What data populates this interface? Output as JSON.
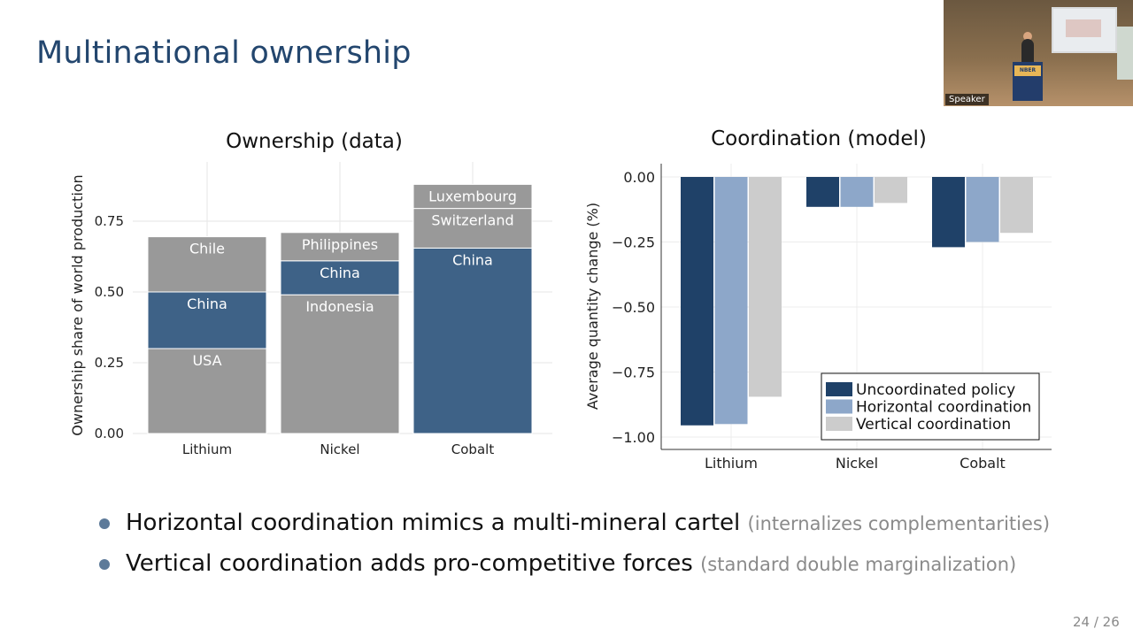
{
  "slide": {
    "title": "Multinational ownership",
    "page_number": "24 / 26",
    "speaker_label": "Speaker",
    "podium_sign": "NBER"
  },
  "bullets": [
    {
      "text": "Horizontal coordination mimics a multi-mineral cartel",
      "note": "(internalizes complementarities)"
    },
    {
      "text": "Vertical coordination adds pro-competitive forces",
      "note": "(standard double marginalization)"
    }
  ],
  "colors": {
    "title": "#23466e",
    "bar_gray": "#999999",
    "bar_blue": "#3e6287",
    "dark_blue": "#1f4168",
    "light_blue": "#8da7c9",
    "light_gray": "#cccccc",
    "bullet": "#5d7a99"
  },
  "chart_data": [
    {
      "type": "bar",
      "stacked": true,
      "title": "Ownership (data)",
      "ylabel": "Ownership share of world production",
      "xlabel": "",
      "categories": [
        "Lithium",
        "Nickel",
        "Cobalt"
      ],
      "ylim": [
        0,
        0.95
      ],
      "yticks": [
        "0.00",
        "0.25",
        "0.50",
        "0.75"
      ],
      "grid": true,
      "bars": [
        {
          "category": "Lithium",
          "segments": [
            {
              "label": "USA",
              "value": 0.3,
              "color": "gray"
            },
            {
              "label": "China",
              "value": 0.2,
              "color": "blue"
            },
            {
              "label": "Chile",
              "value": 0.195,
              "color": "gray"
            }
          ]
        },
        {
          "category": "Nickel",
          "segments": [
            {
              "label": "Indonesia",
              "value": 0.49,
              "color": "gray"
            },
            {
              "label": "China",
              "value": 0.12,
              "color": "blue"
            },
            {
              "label": "Philippines",
              "value": 0.1,
              "color": "gray"
            }
          ]
        },
        {
          "category": "Cobalt",
          "segments": [
            {
              "label": "China",
              "value": 0.655,
              "color": "blue"
            },
            {
              "label": "Switzerland",
              "value": 0.14,
              "color": "gray"
            },
            {
              "label": "Luxembourg",
              "value": 0.085,
              "color": "gray"
            }
          ]
        }
      ]
    },
    {
      "type": "bar",
      "title": "Coordination (model)",
      "ylabel": "Average quantity change (%)",
      "xlabel": "",
      "categories": [
        "Lithium",
        "Nickel",
        "Cobalt"
      ],
      "ylim": [
        -1.05,
        0.05
      ],
      "yticks": [
        "0.00",
        "−0.25",
        "−0.50",
        "−0.75",
        "−1.00"
      ],
      "grid": true,
      "legend_position": "bottom-right",
      "series": [
        {
          "name": "Uncoordinated policy",
          "values": [
            -0.955,
            -0.115,
            -0.27
          ],
          "color": "dark_blue"
        },
        {
          "name": "Horizontal coordination",
          "values": [
            -0.95,
            -0.115,
            -0.25
          ],
          "color": "light_blue"
        },
        {
          "name": "Vertical coordination",
          "values": [
            -0.845,
            -0.1,
            -0.215
          ],
          "color": "light_gray"
        }
      ]
    }
  ]
}
